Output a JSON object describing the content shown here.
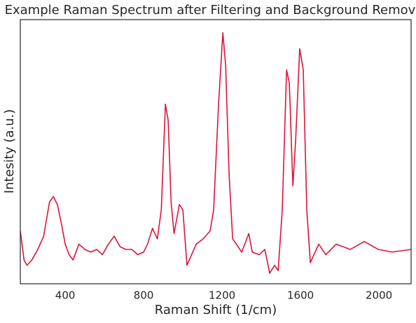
{
  "chart_data": {
    "type": "line",
    "title": "Example Raman Spectrum after Filtering and Background Removal",
    "x_label": "Raman Shift (1/cm)",
    "y_label": "Intesity (a.u.)",
    "xlim": [
      171,
      2164
    ],
    "ylim": [
      0,
      1
    ],
    "xticks": [
      400,
      800,
      1200,
      1600,
      2000
    ],
    "x": [
      171,
      190,
      205,
      230,
      260,
      290,
      320,
      340,
      360,
      380,
      400,
      420,
      440,
      470,
      500,
      530,
      560,
      590,
      620,
      650,
      680,
      710,
      740,
      770,
      800,
      820,
      845,
      870,
      890,
      911,
      925,
      940,
      955,
      970,
      982,
      1000,
      1021,
      1068,
      1104,
      1139,
      1157,
      1182,
      1204,
      1218,
      1236,
      1254,
      1282,
      1300,
      1336,
      1354,
      1389,
      1418,
      1443,
      1468,
      1486,
      1507,
      1529,
      1543,
      1561,
      1575,
      1596,
      1614,
      1632,
      1650,
      1693,
      1729,
      1782,
      1854,
      1925,
      1996,
      2068,
      2164
    ],
    "series": [
      {
        "color": "#dc143c",
        "values": [
          0.2,
          0.09,
          0.07,
          0.09,
          0.13,
          0.18,
          0.31,
          0.33,
          0.3,
          0.23,
          0.15,
          0.11,
          0.09,
          0.15,
          0.13,
          0.12,
          0.13,
          0.11,
          0.15,
          0.18,
          0.14,
          0.13,
          0.13,
          0.11,
          0.12,
          0.15,
          0.21,
          0.17,
          0.28,
          0.68,
          0.62,
          0.31,
          0.19,
          0.25,
          0.3,
          0.28,
          0.07,
          0.15,
          0.17,
          0.2,
          0.28,
          0.68,
          0.95,
          0.83,
          0.41,
          0.17,
          0.14,
          0.12,
          0.19,
          0.12,
          0.11,
          0.13,
          0.04,
          0.07,
          0.05,
          0.28,
          0.81,
          0.76,
          0.37,
          0.54,
          0.89,
          0.81,
          0.28,
          0.08,
          0.15,
          0.11,
          0.15,
          0.13,
          0.16,
          0.13,
          0.12,
          0.13
        ]
      }
    ]
  }
}
